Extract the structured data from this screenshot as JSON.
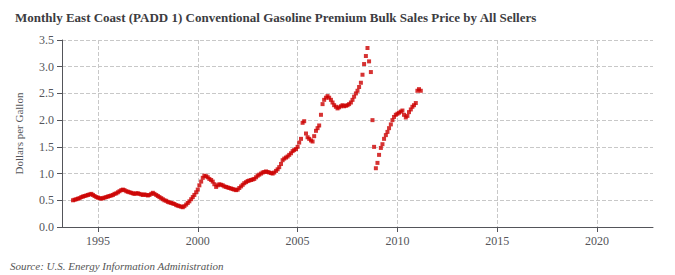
{
  "chart_data": {
    "type": "scatter",
    "title": "Monthly East Coast (PADD 1) Conventional Gasoline Premium Bulk Sales Price by All Sellers",
    "ylabel": "Dollars per Gallon",
    "annotations": [
      "Source: U.S. Energy Information Administration"
    ],
    "color": "#cc0000",
    "marker": "square",
    "grid": true,
    "xlim": [
      1993.2,
      2022.8
    ],
    "xticks": [
      1995,
      2000,
      2005,
      2010,
      2015,
      2020
    ],
    "ylim": [
      0.0,
      3.5
    ],
    "yticks": [
      {
        "value": 0.0,
        "label": "0.0"
      },
      0.5,
      {
        "value": 1.0,
        "label": "1.0"
      },
      1.5,
      {
        "value": 2.0,
        "label": "2.0"
      },
      2.5,
      {
        "value": 3.0,
        "label": "3.0"
      },
      3.5
    ],
    "x": [
      1993.75,
      1993.83,
      1993.92,
      1994.0,
      1994.08,
      1994.17,
      1994.25,
      1994.33,
      1994.42,
      1994.5,
      1994.58,
      1994.67,
      1994.75,
      1994.83,
      1994.92,
      1995.0,
      1995.08,
      1995.17,
      1995.25,
      1995.33,
      1995.42,
      1995.5,
      1995.58,
      1995.67,
      1995.75,
      1995.83,
      1995.92,
      1996.0,
      1996.08,
      1996.17,
      1996.25,
      1996.33,
      1996.42,
      1996.5,
      1996.58,
      1996.67,
      1996.75,
      1996.83,
      1996.92,
      1997.0,
      1997.08,
      1997.17,
      1997.25,
      1997.33,
      1997.42,
      1997.5,
      1997.58,
      1997.67,
      1997.75,
      1997.83,
      1997.92,
      1998.0,
      1998.08,
      1998.17,
      1998.25,
      1998.33,
      1998.42,
      1998.5,
      1998.58,
      1998.67,
      1998.75,
      1998.83,
      1998.92,
      1999.0,
      1999.08,
      1999.17,
      1999.25,
      1999.33,
      1999.42,
      1999.5,
      1999.58,
      1999.67,
      1999.75,
      1999.83,
      1999.92,
      2000.0,
      2000.08,
      2000.17,
      2000.25,
      2000.33,
      2000.42,
      2000.5,
      2000.58,
      2000.67,
      2000.75,
      2000.83,
      2000.92,
      2001.0,
      2001.08,
      2001.17,
      2001.25,
      2001.33,
      2001.42,
      2001.5,
      2001.58,
      2001.67,
      2001.75,
      2001.83,
      2001.92,
      2002.0,
      2002.08,
      2002.17,
      2002.25,
      2002.33,
      2002.42,
      2002.5,
      2002.58,
      2002.67,
      2002.75,
      2002.83,
      2002.92,
      2003.0,
      2003.08,
      2003.17,
      2003.25,
      2003.33,
      2003.42,
      2003.5,
      2003.58,
      2003.67,
      2003.75,
      2003.83,
      2003.92,
      2004.0,
      2004.08,
      2004.17,
      2004.25,
      2004.33,
      2004.42,
      2004.5,
      2004.58,
      2004.67,
      2004.75,
      2004.83,
      2004.92,
      2005.0,
      2005.08,
      2005.17,
      2005.25,
      2005.33,
      2005.42,
      2005.5,
      2005.58,
      2005.67,
      2005.75,
      2005.83,
      2005.92,
      2006.0,
      2006.08,
      2006.17,
      2006.25,
      2006.33,
      2006.42,
      2006.5,
      2006.58,
      2006.67,
      2006.75,
      2006.83,
      2006.92,
      2007.0,
      2007.08,
      2007.17,
      2007.25,
      2007.33,
      2007.42,
      2007.5,
      2007.58,
      2007.67,
      2007.75,
      2007.83,
      2007.92,
      2008.0,
      2008.08,
      2008.17,
      2008.25,
      2008.33,
      2008.42,
      2008.5,
      2008.58,
      2008.67,
      2008.75,
      2008.83,
      2008.92,
      2009.0,
      2009.08,
      2009.17,
      2009.25,
      2009.33,
      2009.42,
      2009.5,
      2009.58,
      2009.67,
      2009.75,
      2009.83,
      2009.92,
      2010.0,
      2010.08,
      2010.17,
      2010.25,
      2010.33,
      2010.42,
      2010.5,
      2010.58,
      2010.67,
      2010.75,
      2010.83,
      2010.92,
      2011.0,
      2011.08,
      2011.17
    ],
    "values": [
      0.5,
      0.51,
      0.52,
      0.53,
      0.54,
      0.56,
      0.57,
      0.58,
      0.59,
      0.6,
      0.61,
      0.62,
      0.6,
      0.58,
      0.56,
      0.55,
      0.54,
      0.53,
      0.54,
      0.55,
      0.56,
      0.57,
      0.58,
      0.59,
      0.6,
      0.62,
      0.63,
      0.65,
      0.67,
      0.69,
      0.7,
      0.69,
      0.67,
      0.66,
      0.65,
      0.64,
      0.63,
      0.62,
      0.63,
      0.63,
      0.62,
      0.61,
      0.6,
      0.61,
      0.6,
      0.59,
      0.6,
      0.62,
      0.64,
      0.62,
      0.6,
      0.58,
      0.56,
      0.54,
      0.52,
      0.5,
      0.49,
      0.47,
      0.46,
      0.45,
      0.44,
      0.43,
      0.41,
      0.4,
      0.39,
      0.38,
      0.37,
      0.39,
      0.42,
      0.45,
      0.48,
      0.52,
      0.56,
      0.6,
      0.65,
      0.7,
      0.78,
      0.85,
      0.92,
      0.96,
      0.95,
      0.93,
      0.9,
      0.88,
      0.85,
      0.8,
      0.75,
      0.78,
      0.8,
      0.79,
      0.78,
      0.76,
      0.75,
      0.74,
      0.73,
      0.72,
      0.71,
      0.7,
      0.69,
      0.7,
      0.73,
      0.76,
      0.79,
      0.82,
      0.84,
      0.86,
      0.87,
      0.88,
      0.89,
      0.9,
      0.93,
      0.96,
      0.98,
      1.0,
      1.02,
      1.03,
      1.04,
      1.03,
      1.02,
      1.01,
      1.0,
      1.02,
      1.05,
      1.08,
      1.12,
      1.18,
      1.25,
      1.28,
      1.3,
      1.32,
      1.35,
      1.38,
      1.42,
      1.44,
      1.46,
      1.5,
      1.58,
      1.65,
      1.95,
      1.98,
      1.75,
      1.68,
      1.65,
      1.62,
      1.6,
      1.7,
      1.8,
      1.85,
      1.9,
      2.1,
      2.3,
      2.38,
      2.42,
      2.45,
      2.42,
      2.38,
      2.33,
      2.28,
      2.25,
      2.22,
      2.24,
      2.26,
      2.28,
      2.26,
      2.27,
      2.28,
      2.3,
      2.33,
      2.38,
      2.44,
      2.5,
      2.55,
      2.62,
      2.7,
      2.85,
      3.05,
      3.2,
      3.35,
      3.1,
      2.9,
      2.0,
      1.5,
      1.1,
      1.2,
      1.35,
      1.48,
      1.55,
      1.65,
      1.72,
      1.78,
      1.85,
      1.92,
      2.0,
      2.06,
      2.1,
      2.12,
      2.14,
      2.16,
      2.18,
      2.1,
      2.05,
      2.08,
      2.15,
      2.2,
      2.25,
      2.28,
      2.32,
      2.55,
      2.58,
      2.55
    ]
  }
}
